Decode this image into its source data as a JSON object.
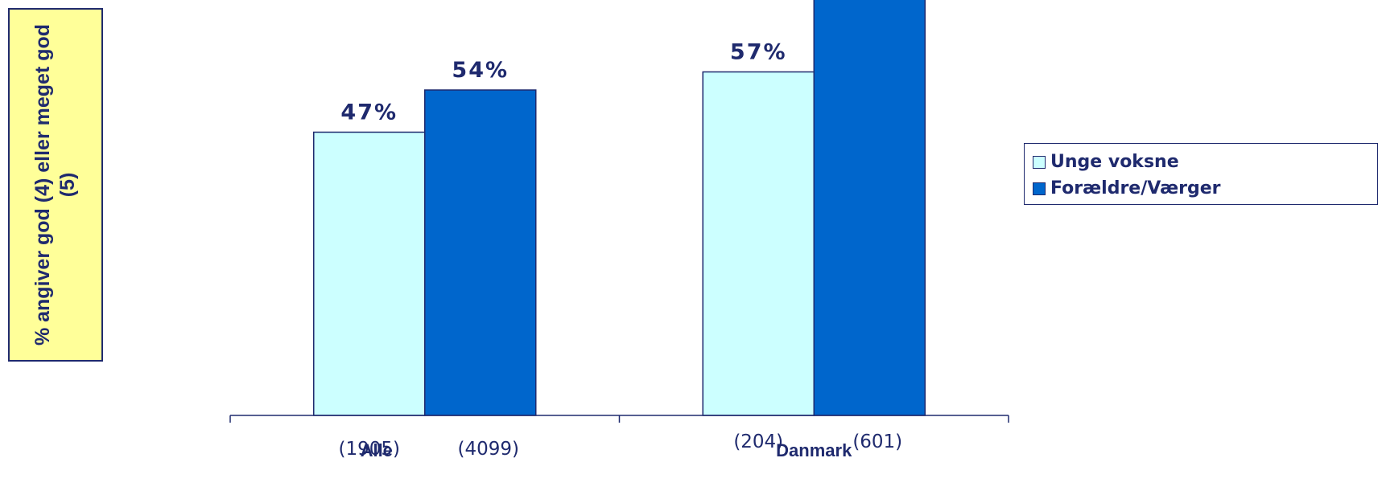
{
  "chart_data": {
    "type": "bar",
    "ylabel": "% angiver god (4) eller meget god (5)",
    "categories": [
      "Alle",
      "Danmark"
    ],
    "category_counts": [
      [
        "(1905)",
        "(4099)"
      ],
      [
        "(204)",
        "(601)"
      ]
    ],
    "ylim": [
      0,
      100
    ],
    "grid": false,
    "legend_position": "right",
    "series": [
      {
        "name": "Unge voksne",
        "values": [
          47,
          57
        ],
        "labels": [
          "47%",
          "57%"
        ],
        "color": "#ccffff"
      },
      {
        "name": "Forældre/Værger",
        "values": [
          54,
          71
        ],
        "labels": [
          "54%",
          ""
        ],
        "color": "#0066cc"
      }
    ]
  }
}
